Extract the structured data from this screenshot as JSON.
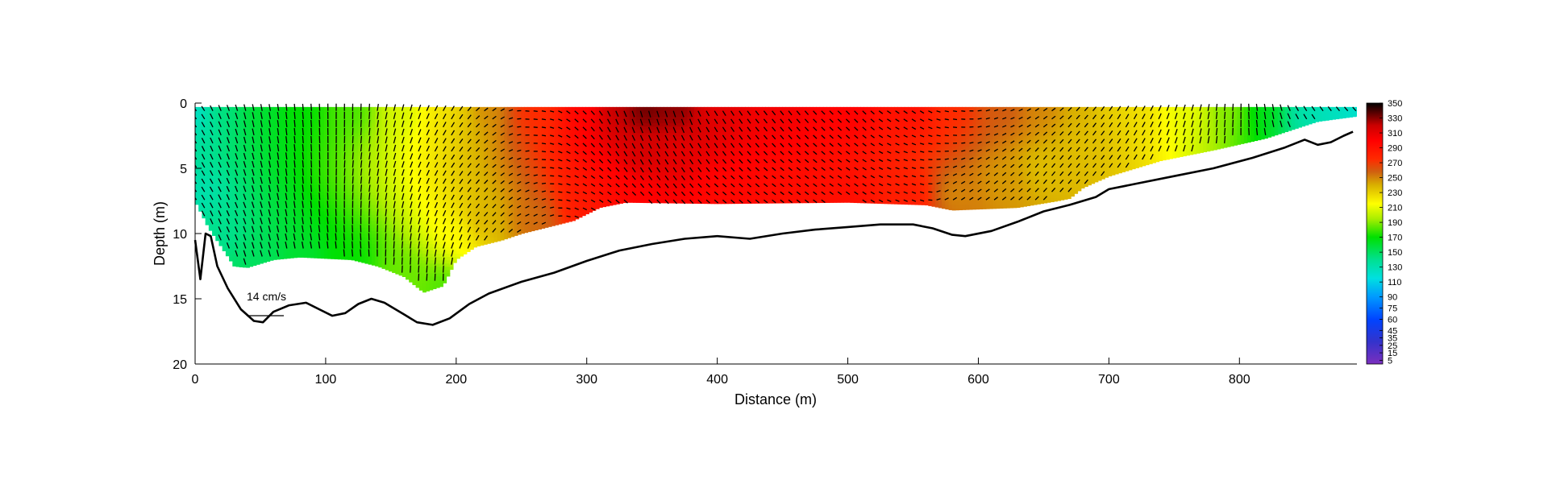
{
  "chart_data": {
    "type": "heatmap",
    "title": "",
    "xlabel": "Distance (m)",
    "ylabel": "Depth (m)",
    "xlim": [
      0,
      890
    ],
    "ylim": [
      0,
      20
    ],
    "y_reversed": true,
    "x_ticks": [
      0,
      100,
      200,
      300,
      400,
      500,
      600,
      700,
      800
    ],
    "y_ticks": [
      0,
      5,
      10,
      15,
      20
    ],
    "annotation": "14 cm/s",
    "colorbar": {
      "ticks": [
        350,
        330,
        310,
        290,
        270,
        250,
        230,
        210,
        190,
        170,
        150,
        130,
        110,
        90,
        75,
        60,
        45,
        35,
        25,
        15,
        5
      ],
      "range": [
        0,
        350
      ],
      "stops": [
        {
          "v": 0,
          "color": "#7b2fbe"
        },
        {
          "v": 30,
          "color": "#3333cc"
        },
        {
          "v": 60,
          "color": "#0044ff"
        },
        {
          "v": 90,
          "color": "#0099ff"
        },
        {
          "v": 115,
          "color": "#00e0e0"
        },
        {
          "v": 140,
          "color": "#00e090"
        },
        {
          "v": 170,
          "color": "#00e000"
        },
        {
          "v": 195,
          "color": "#aaee00"
        },
        {
          "v": 215,
          "color": "#ffff00"
        },
        {
          "v": 240,
          "color": "#d9b000"
        },
        {
          "v": 258,
          "color": "#d06010"
        },
        {
          "v": 275,
          "color": "#ff2a00"
        },
        {
          "v": 300,
          "color": "#ff0000"
        },
        {
          "v": 320,
          "color": "#cc0000"
        },
        {
          "v": 335,
          "color": "#660000"
        },
        {
          "v": 350,
          "color": "#000000"
        }
      ]
    },
    "bed_profile": [
      [
        0,
        10.5
      ],
      [
        4,
        13.5
      ],
      [
        8,
        10.0
      ],
      [
        12,
        10.2
      ],
      [
        17,
        12.5
      ],
      [
        25,
        14.2
      ],
      [
        35,
        15.8
      ],
      [
        45,
        16.7
      ],
      [
        52,
        16.8
      ],
      [
        60,
        16.0
      ],
      [
        72,
        15.5
      ],
      [
        85,
        15.3
      ],
      [
        95,
        15.8
      ],
      [
        105,
        16.3
      ],
      [
        115,
        16.1
      ],
      [
        125,
        15.4
      ],
      [
        135,
        15.0
      ],
      [
        145,
        15.3
      ],
      [
        160,
        16.2
      ],
      [
        170,
        16.8
      ],
      [
        182,
        17.0
      ],
      [
        195,
        16.5
      ],
      [
        210,
        15.4
      ],
      [
        225,
        14.6
      ],
      [
        250,
        13.7
      ],
      [
        275,
        13.0
      ],
      [
        300,
        12.1
      ],
      [
        325,
        11.3
      ],
      [
        350,
        10.8
      ],
      [
        375,
        10.4
      ],
      [
        400,
        10.2
      ],
      [
        425,
        10.4
      ],
      [
        450,
        10.0
      ],
      [
        475,
        9.7
      ],
      [
        500,
        9.5
      ],
      [
        525,
        9.3
      ],
      [
        550,
        9.3
      ],
      [
        565,
        9.6
      ],
      [
        580,
        10.1
      ],
      [
        590,
        10.2
      ],
      [
        610,
        9.8
      ],
      [
        630,
        9.1
      ],
      [
        650,
        8.3
      ],
      [
        670,
        7.8
      ],
      [
        690,
        7.2
      ],
      [
        700,
        6.6
      ],
      [
        720,
        6.2
      ],
      [
        750,
        5.6
      ],
      [
        780,
        5.0
      ],
      [
        810,
        4.2
      ],
      [
        835,
        3.4
      ],
      [
        850,
        2.8
      ],
      [
        860,
        3.2
      ],
      [
        870,
        3.0
      ],
      [
        880,
        2.5
      ],
      [
        887,
        2.2
      ]
    ],
    "data_bottom": [
      [
        0,
        7.5
      ],
      [
        10,
        9.5
      ],
      [
        20,
        11.0
      ],
      [
        30,
        12.5
      ],
      [
        40,
        12.6
      ],
      [
        60,
        12.0
      ],
      [
        80,
        11.8
      ],
      [
        100,
        11.9
      ],
      [
        120,
        12.0
      ],
      [
        140,
        12.5
      ],
      [
        160,
        13.3
      ],
      [
        175,
        14.5
      ],
      [
        190,
        14.0
      ],
      [
        200,
        12.0
      ],
      [
        215,
        11.0
      ],
      [
        235,
        10.5
      ],
      [
        250,
        10.0
      ],
      [
        270,
        9.5
      ],
      [
        290,
        9.0
      ],
      [
        300,
        8.5
      ],
      [
        310,
        8.0
      ],
      [
        330,
        7.6
      ],
      [
        400,
        7.7
      ],
      [
        500,
        7.6
      ],
      [
        560,
        7.8
      ],
      [
        580,
        8.2
      ],
      [
        630,
        8.0
      ],
      [
        660,
        7.5
      ],
      [
        670,
        7.3
      ],
      [
        680,
        6.5
      ],
      [
        700,
        5.6
      ],
      [
        740,
        4.4
      ],
      [
        780,
        3.6
      ],
      [
        820,
        2.7
      ],
      [
        860,
        1.4
      ],
      [
        890,
        1.0
      ]
    ],
    "surface_start": 0.3,
    "direction_field": [
      [
        0,
        0.5,
        120
      ],
      [
        0,
        7,
        130
      ],
      [
        20,
        0.5,
        145
      ],
      [
        20,
        10,
        140
      ],
      [
        50,
        0.5,
        160
      ],
      [
        50,
        12,
        150
      ],
      [
        80,
        0.5,
        170
      ],
      [
        80,
        12,
        160
      ],
      [
        120,
        0.5,
        180
      ],
      [
        120,
        12,
        170
      ],
      [
        160,
        0.5,
        205
      ],
      [
        160,
        13,
        185
      ],
      [
        190,
        0.5,
        220
      ],
      [
        190,
        14,
        180
      ],
      [
        200,
        0.5,
        230
      ],
      [
        200,
        10,
        215
      ],
      [
        220,
        0.5,
        250
      ],
      [
        220,
        9,
        240
      ],
      [
        260,
        0.5,
        275
      ],
      [
        260,
        9,
        255
      ],
      [
        300,
        0.5,
        295
      ],
      [
        300,
        8,
        285
      ],
      [
        320,
        0.5,
        325
      ],
      [
        320,
        7,
        295
      ],
      [
        345,
        0.5,
        338
      ],
      [
        345,
        4,
        318
      ],
      [
        345,
        7,
        300
      ],
      [
        370,
        0.5,
        332
      ],
      [
        370,
        4,
        310
      ],
      [
        400,
        0.5,
        310
      ],
      [
        400,
        7,
        295
      ],
      [
        450,
        0.5,
        305
      ],
      [
        450,
        7,
        293
      ],
      [
        500,
        0.5,
        300
      ],
      [
        500,
        7,
        292
      ],
      [
        550,
        0.5,
        292
      ],
      [
        550,
        7,
        285
      ],
      [
        580,
        0.5,
        275
      ],
      [
        580,
        7,
        248
      ],
      [
        620,
        0.5,
        260
      ],
      [
        620,
        6,
        245
      ],
      [
        650,
        0.5,
        250
      ],
      [
        650,
        5,
        235
      ],
      [
        680,
        0.5,
        240
      ],
      [
        680,
        3,
        235
      ],
      [
        700,
        0.5,
        230
      ],
      [
        720,
        0.5,
        225
      ],
      [
        760,
        0.5,
        210
      ],
      [
        790,
        0.5,
        190
      ],
      [
        820,
        0.5,
        165
      ],
      [
        850,
        0.5,
        130
      ],
      [
        870,
        0.5,
        125
      ],
      [
        890,
        0.5,
        120
      ]
    ]
  }
}
